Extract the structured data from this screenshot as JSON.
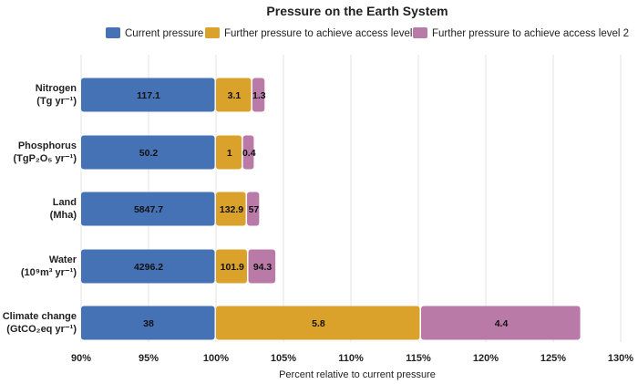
{
  "chart_data": {
    "type": "bar",
    "orientation": "horizontal",
    "stacked": true,
    "title": "Pressure on the Earth System",
    "xlabel": "Percent relative to current pressure",
    "xlim": [
      90,
      130
    ],
    "xticks": [
      90,
      95,
      100,
      105,
      110,
      115,
      120,
      125,
      130
    ],
    "xtick_labels": [
      "90%",
      "95%",
      "100%",
      "105%",
      "110%",
      "115%",
      "120%",
      "125%",
      "130%"
    ],
    "grid": true,
    "legend_position": "top-right",
    "categories": [
      {
        "line1": "Nitrogen",
        "line2": "(Tg yr⁻¹)"
      },
      {
        "line1": "Phosphorus",
        "line2": "(TgP₂O₅ yr⁻¹)"
      },
      {
        "line1": "Land",
        "line2": "(Mha)"
      },
      {
        "line1": "Water",
        "line2": "(10⁹m³ yr⁻¹)"
      },
      {
        "line1": "Climate change",
        "line2": "(GtCO₂eq yr⁻¹)"
      }
    ],
    "series": [
      {
        "name": "Current pressure",
        "color": "#4472b5",
        "percent": [
          100,
          100,
          100,
          100,
          100
        ],
        "labels": [
          "117.1",
          "50.2",
          "5847.7",
          "4296.2",
          "38"
        ]
      },
      {
        "name": "Further pressure to achieve access level 1",
        "color": "#daa22a",
        "percent": [
          2.7,
          2.0,
          2.3,
          2.4,
          15.2
        ],
        "labels": [
          "3.1",
          "1",
          "132.9",
          "101.9",
          "5.8"
        ]
      },
      {
        "name": "Further pressure to achieve access level 2",
        "color": "#b97aa8",
        "percent": [
          1.0,
          0.9,
          1.0,
          2.1,
          11.9
        ],
        "labels": [
          "1.3",
          "0.4",
          "57",
          "94.3",
          "4.4"
        ]
      }
    ]
  }
}
